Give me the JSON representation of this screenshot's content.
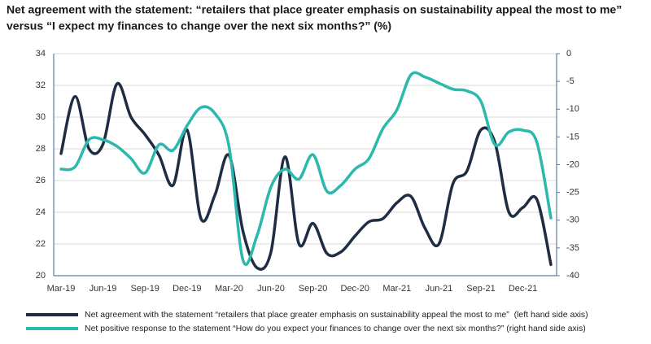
{
  "chart_data": {
    "type": "line",
    "title": [
      "Net agreement with the statement: “retailers that place greater emphasis on sustainability appeal the most to me”",
      "versus “I expect my finances to change over the next six months?” (%)"
    ],
    "categories": [
      "Mar-19",
      null,
      null,
      "Jun-19",
      null,
      null,
      "Sep-19",
      null,
      null,
      "Dec-19",
      null,
      null,
      "Mar-20",
      null,
      null,
      "Jun-20",
      null,
      null,
      "Sep-20",
      null,
      null,
      "Dec-20",
      null,
      null,
      "Mar-21",
      null,
      null,
      "Jun-21",
      null,
      null,
      "Sep-21",
      null,
      null,
      "Dec-21",
      null,
      null
    ],
    "series": [
      {
        "name": "Net agreement with the statement “retailers that place greater emphasis on sustainability appeal the most to me”  (left hand side axis)",
        "color": "#1f2d44",
        "axis": "y",
        "values": [
          27.7,
          31.3,
          28.0,
          28.3,
          32.1,
          30.0,
          28.9,
          27.6,
          25.7,
          29.2,
          23.6,
          25.1,
          27.6,
          22.8,
          20.5,
          21.5,
          27.5,
          22.0,
          23.3,
          21.4,
          21.5,
          22.5,
          23.4,
          23.6,
          24.6,
          25.0,
          23.0,
          22.0,
          25.8,
          26.6,
          29.2,
          28.4,
          24.0,
          24.3,
          24.8,
          20.7
        ]
      },
      {
        "name": "Net positive response to the statement “How do you expect your finances to change over the next six months?” (right hand side axis)",
        "color": "#2bb8ad",
        "axis": "y2",
        "values": [
          -20.8,
          -20.4,
          -15.5,
          -15.5,
          -16.7,
          -18.9,
          -21.5,
          -16.4,
          -17.4,
          -13.0,
          -9.7,
          -10.8,
          -16.7,
          -37.2,
          -32.8,
          -24.0,
          -20.8,
          -22.6,
          -18.2,
          -24.8,
          -23.7,
          -20.8,
          -18.9,
          -13.5,
          -10.1,
          -3.8,
          -4.2,
          -5.3,
          -6.4,
          -6.7,
          -8.6,
          -16.4,
          -14.1,
          -13.8,
          -16.0,
          -29.6
        ]
      }
    ],
    "ylim": [
      20,
      34
    ],
    "yticks": [
      20,
      22,
      24,
      26,
      28,
      30,
      32,
      34
    ],
    "y2lim": [
      -40,
      0
    ],
    "y2ticks": [
      -40,
      -35,
      -30,
      -25,
      -20,
      -15,
      -10,
      -5,
      0
    ],
    "grid": true
  }
}
